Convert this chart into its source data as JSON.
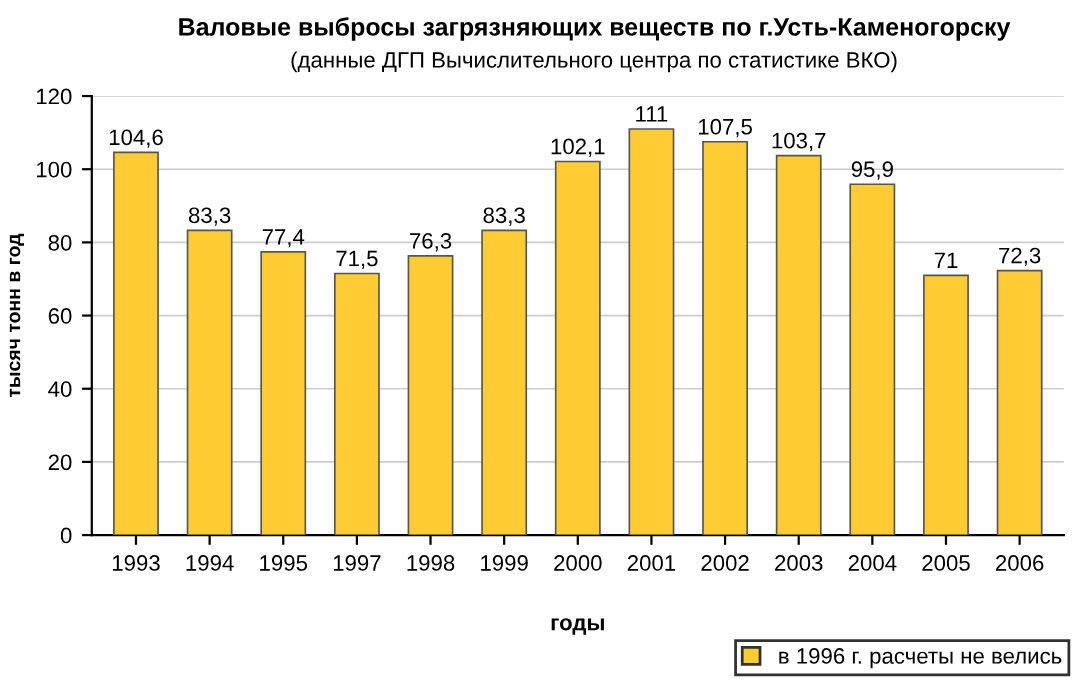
{
  "chart_data": {
    "type": "bar",
    "title": "Валовые выбросы загрязняющих веществ по г.Усть-Каменогорску",
    "subtitle": "(данные ДГП Вычислительного центра по статистике ВКО)",
    "xlabel": "годы",
    "ylabel": "тысяч тонн в год",
    "categories": [
      "1993",
      "1994",
      "1995",
      "1997",
      "1998",
      "1999",
      "2000",
      "2001",
      "2002",
      "2003",
      "2004",
      "2005",
      "2006"
    ],
    "series": [
      {
        "name": "в 1996 г. расчеты не велись",
        "color": "#ffcc33",
        "values": [
          104.6,
          83.3,
          77.4,
          71.5,
          76.3,
          83.3,
          102.1,
          111,
          107.5,
          103.7,
          95.9,
          71,
          72.3
        ]
      }
    ],
    "value_labels": [
      "104,6",
      "83,3",
      "77,4",
      "71,5",
      "76,3",
      "83,3",
      "102,1",
      "111",
      "107,5",
      "103,7",
      "95,9",
      "71",
      "72,3"
    ],
    "ylim": [
      0,
      120
    ],
    "yticks": [
      0,
      20,
      40,
      60,
      80,
      100,
      120
    ],
    "grid": "y",
    "legend": "bottom right"
  }
}
